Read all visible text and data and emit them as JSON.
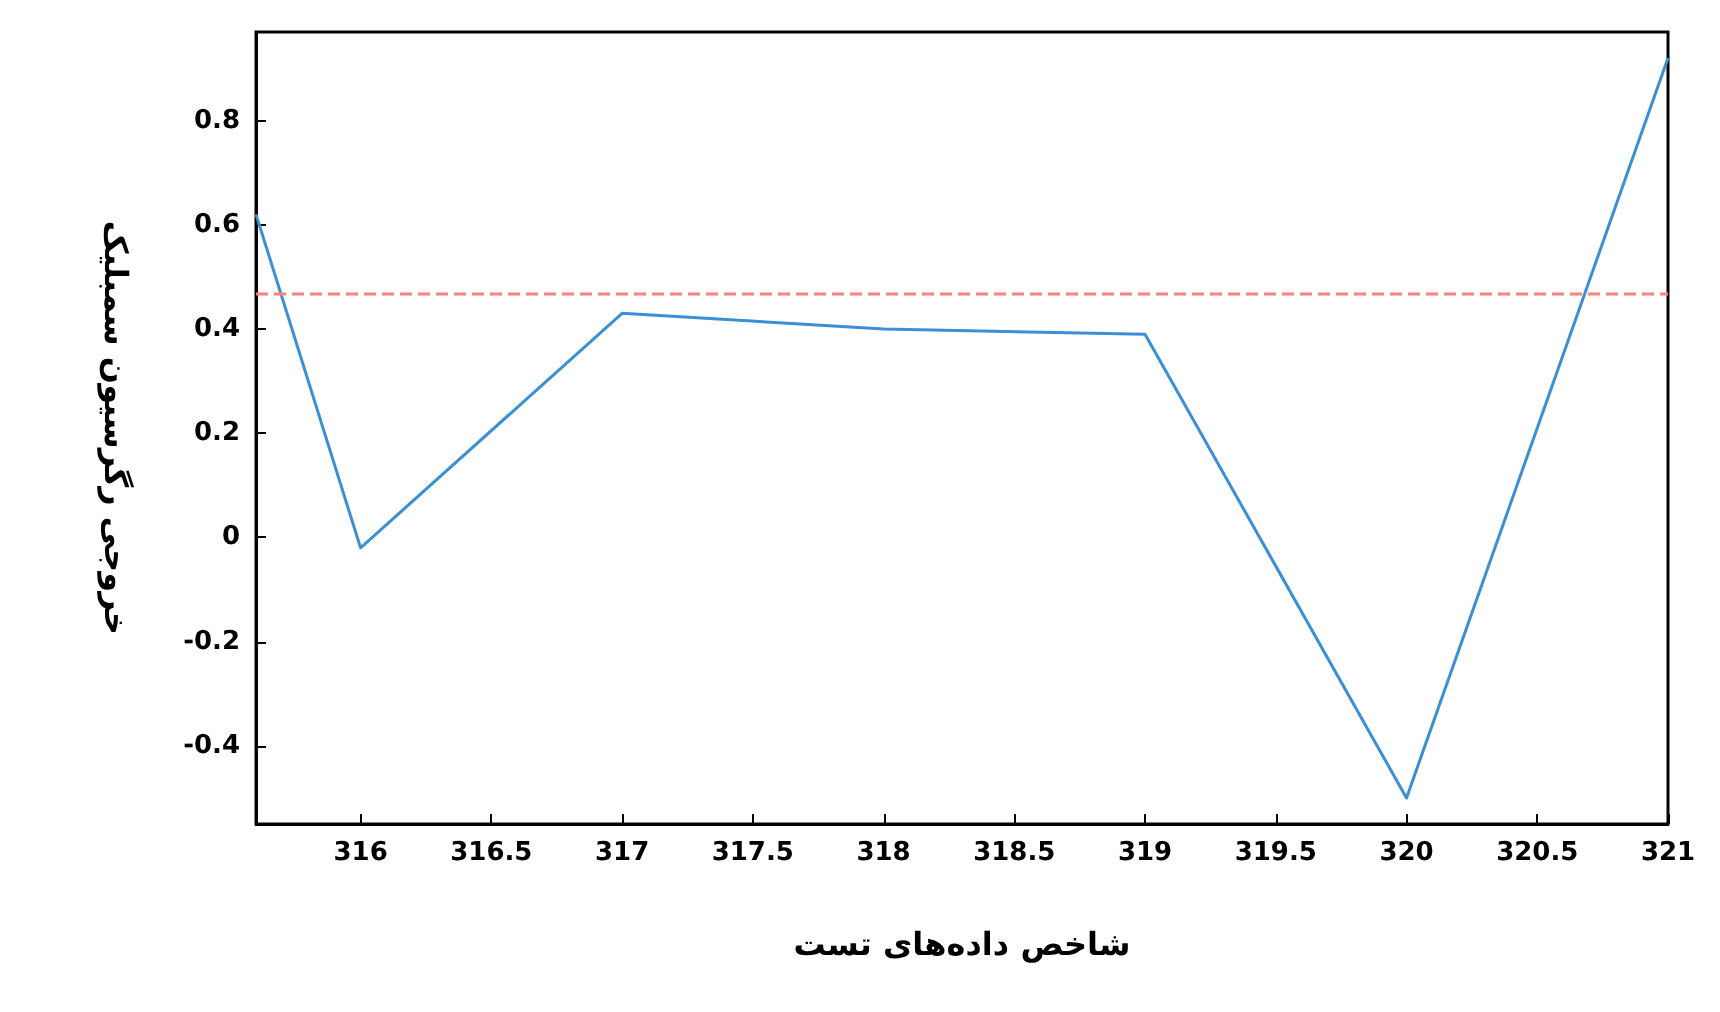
{
  "chart_data": {
    "type": "line",
    "xlabel": "شاخص داده‌های تست",
    "ylabel": "خروجی رگرسیون سمبلیک",
    "x": [
      315.6,
      316,
      317,
      318,
      319,
      320,
      321
    ],
    "series": [
      {
        "color": "#3b8fd4",
        "values": [
          0.62,
          -0.02,
          0.43,
          0.4,
          0.39,
          -0.5,
          0.92
        ]
      }
    ],
    "xlim": [
      315.6,
      321
    ],
    "xticks": [
      316,
      316.5,
      317,
      317.5,
      318,
      318.5,
      319,
      319.5,
      320,
      320.5,
      321
    ],
    "ylim": [
      -0.55,
      0.97
    ],
    "yticks": [
      -0.4,
      -0.2,
      0,
      0.2,
      0.4,
      0.6,
      0.8
    ],
    "ref_lines": [
      {
        "axis": "y",
        "value": 0.47,
        "color": "#ff8080",
        "line_style": "dashed"
      }
    ],
    "grid": false,
    "marker": "none",
    "line_style": "solid"
  }
}
